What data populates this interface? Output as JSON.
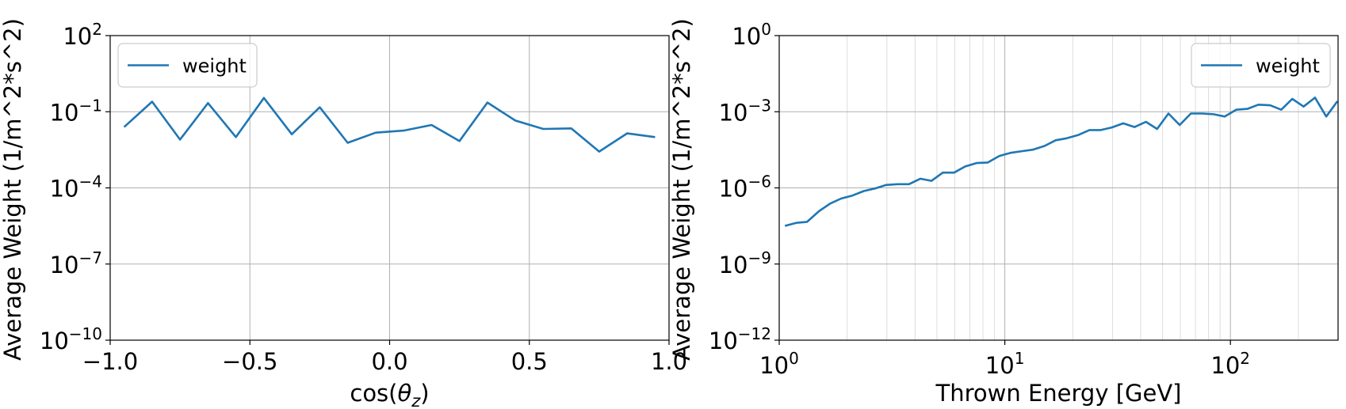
{
  "colors": {
    "series": "#1f77b4",
    "grid_major": "#b0b0b0",
    "grid_minor": "#dddddd",
    "frame": "#000000"
  },
  "chart_data": [
    {
      "type": "line",
      "xlabel": "cos(θ_z)",
      "ylabel": "Average Weight (1/m^2*s^2)",
      "xlim": [
        -1.0,
        1.0
      ],
      "ylim": [
        1e-10,
        100
      ],
      "yscale": "log",
      "xticks": [
        -1.0,
        -0.5,
        0.0,
        0.5,
        1.0
      ],
      "xtick_labels": [
        "−1.0",
        "−0.5",
        "0.0",
        "0.5",
        "1.0"
      ],
      "yticks": [
        1e-10,
        1e-07,
        0.0001,
        0.1,
        100
      ],
      "ytick_labels": [
        {
          "base": "10",
          "exp": "−10"
        },
        {
          "base": "10",
          "exp": "−7"
        },
        {
          "base": "10",
          "exp": "−4"
        },
        {
          "base": "10",
          "exp": "−1"
        },
        {
          "base": "10",
          "exp": "2"
        }
      ],
      "grid": true,
      "legend": "upper left",
      "series": [
        {
          "name": "weight",
          "x": [
            -0.95,
            -0.85,
            -0.75,
            -0.65,
            -0.55,
            -0.45,
            -0.35,
            -0.25,
            -0.15,
            -0.05,
            0.05,
            0.15,
            0.25,
            0.35,
            0.45,
            0.55,
            0.65,
            0.75,
            0.85,
            0.95
          ],
          "y": [
            0.025,
            0.25,
            0.008,
            0.22,
            0.01,
            0.35,
            0.013,
            0.15,
            0.006,
            0.015,
            0.018,
            0.03,
            0.007,
            0.23,
            0.045,
            0.021,
            0.022,
            0.0027,
            0.014,
            0.01
          ]
        }
      ]
    },
    {
      "type": "line",
      "xlabel": "Thrown Energy [GeV]",
      "ylabel": "Average Weight (1/m^2*s^2)",
      "xlim": [
        1,
        300
      ],
      "ylim": [
        1e-12,
        1
      ],
      "xscale": "log",
      "yscale": "log",
      "xticks": [
        1,
        10,
        100
      ],
      "xtick_labels": [
        {
          "base": "10",
          "exp": "0"
        },
        {
          "base": "10",
          "exp": "1"
        },
        {
          "base": "10",
          "exp": "2"
        }
      ],
      "yticks": [
        1e-12,
        1e-09,
        1e-06,
        0.001,
        1
      ],
      "ytick_labels": [
        {
          "base": "10",
          "exp": "−12"
        },
        {
          "base": "10",
          "exp": "−9"
        },
        {
          "base": "10",
          "exp": "−6"
        },
        {
          "base": "10",
          "exp": "−3"
        },
        {
          "base": "10",
          "exp": "0"
        }
      ],
      "grid": true,
      "legend": "upper right",
      "series": [
        {
          "name": "weight",
          "x": [
            1.06,
            1.19,
            1.33,
            1.5,
            1.68,
            1.88,
            2.11,
            2.37,
            2.66,
            2.98,
            3.35,
            3.76,
            4.22,
            4.73,
            5.31,
            5.96,
            6.68,
            7.5,
            8.41,
            9.44,
            10.6,
            11.9,
            13.3,
            15.0,
            16.8,
            18.8,
            21.1,
            23.7,
            26.6,
            29.8,
            33.5,
            37.6,
            42.2,
            47.3,
            53.1,
            59.6,
            66.8,
            75.0,
            84.1,
            94.4,
            106,
            119,
            133,
            150,
            168,
            188,
            211,
            237,
            266,
            298
          ],
          "y": [
            3.2e-08,
            4.2e-08,
            4.6e-08,
            1.2e-07,
            2.4e-07,
            3.8e-07,
            5e-07,
            7.5e-07,
            9.5e-07,
            1.3e-06,
            1.4e-06,
            1.4e-06,
            2.3e-06,
            1.9e-06,
            4e-06,
            4e-06,
            7e-06,
            9.5e-06,
            1e-05,
            1.8e-05,
            2.4e-05,
            2.8e-05,
            3.2e-05,
            4.5e-05,
            7.5e-05,
            9e-05,
            0.00012,
            0.00019,
            0.00019,
            0.00024,
            0.00035,
            0.00025,
            0.0004,
            0.00021,
            0.00085,
            0.0003,
            0.00085,
            0.00085,
            0.0008,
            0.00065,
            0.0012,
            0.0013,
            0.0019,
            0.0018,
            0.0012,
            0.0032,
            0.0016,
            0.0036,
            0.00065,
            0.0026
          ]
        }
      ]
    }
  ]
}
